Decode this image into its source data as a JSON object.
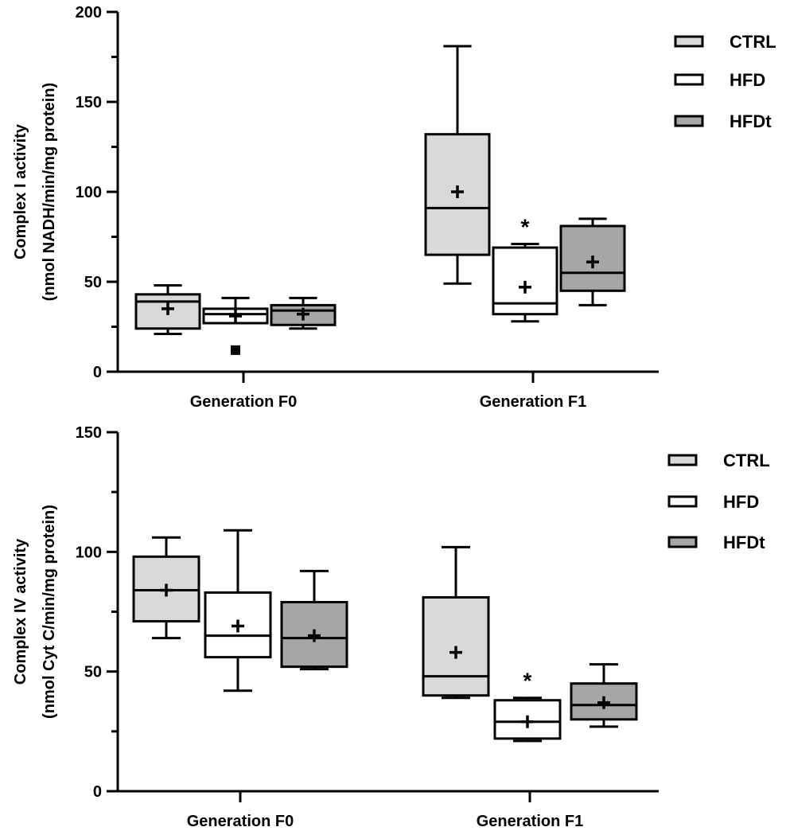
{
  "chart_data": [
    {
      "type": "box",
      "title": "",
      "ylabel_line1": "Complex I activity",
      "ylabel_line2": "(nmol NADH/min/mg protein)",
      "xlabel": "",
      "ylim": [
        0,
        200
      ],
      "yticks": [
        0,
        50,
        100,
        150,
        200
      ],
      "categories": [
        "Generation F0",
        "Generation F1"
      ],
      "legend": {
        "placement": "right",
        "entries": [
          "CTRL",
          "HFD",
          "HFDt"
        ]
      },
      "colors": {
        "CTRL": "#d9d9d9",
        "HFD": "#ffffff",
        "HFDt": "#a6a6a6"
      },
      "series": [
        {
          "name": "CTRL",
          "boxes": [
            {
              "min": 21,
              "q1": 24,
              "median": 39,
              "q3": 43,
              "max": 48,
              "mean": 35
            },
            {
              "min": 49,
              "q1": 65,
              "median": 91,
              "q3": 132,
              "max": 181,
              "mean": 100
            }
          ]
        },
        {
          "name": "HFD",
          "boxes": [
            {
              "min": 27,
              "q1": 27,
              "median": 32,
              "q3": 35,
              "max": 41,
              "mean": 31,
              "outliers": [
                12
              ]
            },
            {
              "min": 28,
              "q1": 32,
              "median": 38,
              "q3": 69,
              "max": 71,
              "mean": 47,
              "annotation": "*"
            }
          ]
        },
        {
          "name": "HFDt",
          "boxes": [
            {
              "min": 24,
              "q1": 26,
              "median": 34,
              "q3": 37,
              "max": 41,
              "mean": 32
            },
            {
              "min": 37,
              "q1": 45,
              "median": 55,
              "q3": 81,
              "max": 85,
              "mean": 61
            }
          ]
        }
      ]
    },
    {
      "type": "box",
      "title": "",
      "ylabel_line1": "Complex IV activity",
      "ylabel_line2": "(nmol Cyt C/min/mg protein)",
      "xlabel": "",
      "ylim": [
        0,
        150
      ],
      "yticks": [
        0,
        50,
        100,
        150
      ],
      "categories": [
        "Generation F0",
        "Generation F1"
      ],
      "legend": {
        "placement": "right",
        "entries": [
          "CTRL",
          "HFD",
          "HFDt"
        ]
      },
      "colors": {
        "CTRL": "#d9d9d9",
        "HFD": "#ffffff",
        "HFDt": "#a6a6a6"
      },
      "series": [
        {
          "name": "CTRL",
          "boxes": [
            {
              "min": 64,
              "q1": 71,
              "median": 84,
              "q3": 98,
              "max": 106,
              "mean": 84
            },
            {
              "min": 39,
              "q1": 40,
              "median": 48,
              "q3": 81,
              "max": 102,
              "mean": 58
            }
          ]
        },
        {
          "name": "HFD",
          "boxes": [
            {
              "min": 42,
              "q1": 56,
              "median": 65,
              "q3": 83,
              "max": 109,
              "mean": 69
            },
            {
              "min": 21,
              "q1": 22,
              "median": 29,
              "q3": 38,
              "max": 39,
              "mean": 29,
              "annotation": "*"
            }
          ]
        },
        {
          "name": "HFDt",
          "boxes": [
            {
              "min": 51,
              "q1": 52,
              "median": 64,
              "q3": 79,
              "max": 92,
              "mean": 65
            },
            {
              "min": 27,
              "q1": 30,
              "median": 36,
              "q3": 45,
              "max": 53,
              "mean": 37
            }
          ]
        }
      ]
    }
  ]
}
